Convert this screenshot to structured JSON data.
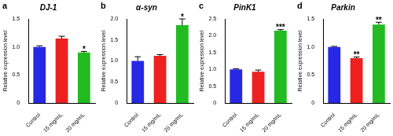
{
  "chart_data": [
    {
      "type": "bar",
      "title": "DJ-1",
      "y_label": "Relative expression level",
      "categories": [
        "Control",
        "15 mg/mL",
        "20 mg/mL"
      ],
      "values": [
        1.0,
        1.15,
        0.9
      ],
      "errors": [
        0.02,
        0.04,
        0.02
      ],
      "colors": [
        "#2727e6",
        "#ee2020",
        "#22bb22"
      ],
      "ylim": [
        0,
        1.5
      ],
      "yticks": [
        0,
        0.5,
        {
          "value": 1.0,
          "label": "1.0"
        },
        1.5
      ],
      "grid": false,
      "annotations": [
        {
          "text": "a"
        },
        {
          "text": "*",
          "category": "20 mg/mL"
        }
      ]
    },
    {
      "type": "bar",
      "title": "α-syn",
      "y_label": "Relative expression level",
      "categories": [
        "Control",
        "15 mg/mL",
        "20 mg/mL"
      ],
      "values": [
        1.0,
        1.12,
        1.85
      ],
      "errors": [
        0.1,
        0.03,
        0.15
      ],
      "colors": [
        "#2727e6",
        "#ee2020",
        "#22bb22"
      ],
      "ylim": [
        0,
        2.0
      ],
      "yticks": [
        0,
        0.5,
        {
          "value": 1.0,
          "label": "1.0"
        },
        1.5,
        {
          "value": 2.0,
          "label": "2.0"
        }
      ],
      "grid": false,
      "annotations": [
        {
          "text": "b"
        },
        {
          "text": "*",
          "category": "20 mg/mL"
        }
      ]
    },
    {
      "type": "bar",
      "title": "PinK1",
      "y_label": "Relative expression level",
      "categories": [
        "Control",
        "15 mg/mL",
        "20 mg/mL"
      ],
      "values": [
        1.0,
        0.93,
        2.15
      ],
      "errors": [
        0.02,
        0.05,
        0.03
      ],
      "colors": [
        "#2727e6",
        "#ee2020",
        "#22bb22"
      ],
      "ylim": [
        0,
        2.5
      ],
      "yticks": [
        0,
        0.5,
        {
          "value": 1.0,
          "label": "1.0"
        },
        1.5,
        {
          "value": 2.0,
          "label": "2.0"
        },
        2.5
      ],
      "grid": false,
      "annotations": [
        {
          "text": "c"
        },
        {
          "text": "***",
          "category": "20 mg/mL"
        }
      ]
    },
    {
      "type": "bar",
      "title": "Parkin",
      "y_label": "Relative expression level",
      "categories": [
        "Control",
        "15 mg/mL",
        "20 mg/mL"
      ],
      "values": [
        1.0,
        0.8,
        1.4
      ],
      "errors": [
        0.01,
        0.02,
        0.04
      ],
      "colors": [
        "#2727e6",
        "#ee2020",
        "#22bb22"
      ],
      "ylim": [
        0,
        1.5
      ],
      "yticks": [
        0,
        0.5,
        {
          "value": 1.0,
          "label": "1.0"
        },
        1.5
      ],
      "grid": false,
      "annotations": [
        {
          "text": "d"
        },
        {
          "text": "**",
          "category": "15 mg/mL"
        },
        {
          "text": "**",
          "category": "20 mg/mL"
        }
      ]
    }
  ]
}
